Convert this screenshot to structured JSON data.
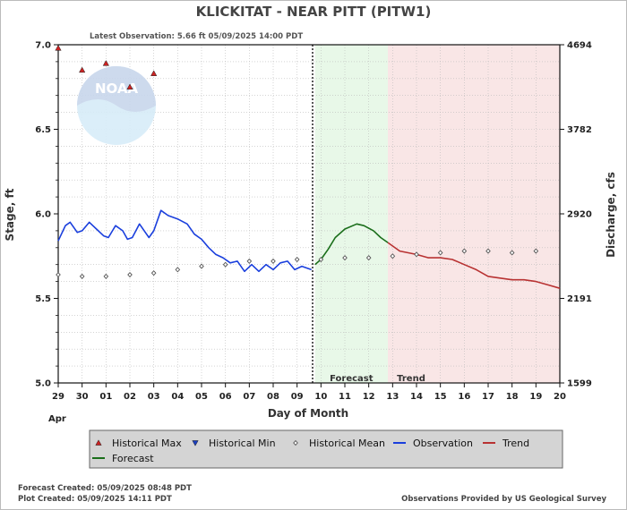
{
  "chart_data": {
    "type": "line",
    "title": "KLICKITAT - NEAR PITT  (PITW1)",
    "subtitle": "Latest Observation: 5.66 ft 05/09/2025 14:00 PDT",
    "ylabel": "Stage, ft",
    "y2label": "Discharge, cfs",
    "xlabel": "Day of Month",
    "month_label": "Apr",
    "ylim": [
      5.0,
      7.0
    ],
    "yticks": [
      5.0,
      5.5,
      6.0,
      6.5,
      7.0
    ],
    "y2ticks": [
      {
        "stage": 5.0,
        "label": "1599"
      },
      {
        "stage": 5.5,
        "label": "2191"
      },
      {
        "stage": 6.0,
        "label": "2920"
      },
      {
        "stage": 6.5,
        "label": "3782"
      },
      {
        "stage": 7.0,
        "label": "4694"
      }
    ],
    "xlim": [
      0,
      21
    ],
    "xticks": [
      "29",
      "30",
      "01",
      "02",
      "03",
      "04",
      "05",
      "06",
      "07",
      "08",
      "09",
      "10",
      "11",
      "12",
      "13",
      "14",
      "15",
      "16",
      "17",
      "18",
      "19",
      "20"
    ],
    "regions": [
      {
        "name": "Forecast",
        "from": 10.75,
        "to": 13.8,
        "color": "#e8f8e8"
      },
      {
        "name": "Trend",
        "from": 13.8,
        "to": 21.0,
        "color": "#f9e6e6"
      }
    ],
    "now_x": 10.65,
    "series": [
      {
        "name": "Historical Max",
        "marker": "triangle-up",
        "color": "#cc2222",
        "points": [
          [
            0,
            6.98
          ],
          [
            1,
            6.85
          ],
          [
            2,
            6.89
          ],
          [
            3,
            6.75
          ],
          [
            4,
            6.83
          ]
        ]
      },
      {
        "name": "Historical Min",
        "marker": "triangle-down",
        "color": "#1a3fbf",
        "points": []
      },
      {
        "name": "Historical Mean",
        "marker": "diamond",
        "color": "#555555",
        "points": [
          [
            0,
            5.64
          ],
          [
            1,
            5.63
          ],
          [
            2,
            5.63
          ],
          [
            3,
            5.64
          ],
          [
            4,
            5.65
          ],
          [
            5,
            5.67
          ],
          [
            6,
            5.69
          ],
          [
            7,
            5.7
          ],
          [
            8,
            5.72
          ],
          [
            9,
            5.72
          ],
          [
            10,
            5.73
          ],
          [
            11,
            5.73
          ],
          [
            12,
            5.74
          ],
          [
            13,
            5.74
          ],
          [
            14,
            5.75
          ],
          [
            15,
            5.76
          ],
          [
            16,
            5.77
          ],
          [
            17,
            5.78
          ],
          [
            18,
            5.78
          ],
          [
            19,
            5.77
          ],
          [
            20,
            5.78
          ]
        ]
      },
      {
        "name": "Observation",
        "color": "#1a3fdd",
        "points": [
          [
            0,
            5.84
          ],
          [
            0.3,
            5.93
          ],
          [
            0.5,
            5.95
          ],
          [
            0.8,
            5.89
          ],
          [
            1.0,
            5.9
          ],
          [
            1.3,
            5.95
          ],
          [
            1.6,
            5.91
          ],
          [
            1.9,
            5.87
          ],
          [
            2.1,
            5.86
          ],
          [
            2.4,
            5.93
          ],
          [
            2.7,
            5.9
          ],
          [
            2.9,
            5.85
          ],
          [
            3.1,
            5.86
          ],
          [
            3.4,
            5.94
          ],
          [
            3.6,
            5.9
          ],
          [
            3.8,
            5.86
          ],
          [
            4.0,
            5.9
          ],
          [
            4.3,
            6.02
          ],
          [
            4.6,
            5.99
          ],
          [
            5.0,
            5.97
          ],
          [
            5.4,
            5.94
          ],
          [
            5.7,
            5.88
          ],
          [
            6.0,
            5.85
          ],
          [
            6.3,
            5.8
          ],
          [
            6.6,
            5.76
          ],
          [
            6.9,
            5.74
          ],
          [
            7.2,
            5.71
          ],
          [
            7.5,
            5.72
          ],
          [
            7.8,
            5.66
          ],
          [
            8.1,
            5.7
          ],
          [
            8.4,
            5.66
          ],
          [
            8.7,
            5.7
          ],
          [
            9.0,
            5.67
          ],
          [
            9.3,
            5.71
          ],
          [
            9.6,
            5.72
          ],
          [
            9.9,
            5.67
          ],
          [
            10.2,
            5.69
          ],
          [
            10.4,
            5.68
          ],
          [
            10.6,
            5.67
          ]
        ]
      },
      {
        "name": "Forecast",
        "color": "#1a6e1a",
        "points": [
          [
            10.75,
            5.7
          ],
          [
            11.0,
            5.73
          ],
          [
            11.3,
            5.79
          ],
          [
            11.6,
            5.86
          ],
          [
            12.0,
            5.91
          ],
          [
            12.5,
            5.94
          ],
          [
            12.8,
            5.93
          ],
          [
            13.2,
            5.9
          ],
          [
            13.5,
            5.86
          ],
          [
            13.8,
            5.83
          ]
        ]
      },
      {
        "name": "Trend",
        "color": "#b83232",
        "points": [
          [
            13.8,
            5.83
          ],
          [
            14.3,
            5.78
          ],
          [
            15.0,
            5.76
          ],
          [
            15.5,
            5.74
          ],
          [
            16.0,
            5.74
          ],
          [
            16.5,
            5.73
          ],
          [
            17.0,
            5.7
          ],
          [
            17.5,
            5.67
          ],
          [
            18.0,
            5.63
          ],
          [
            18.5,
            5.62
          ],
          [
            19.0,
            5.61
          ],
          [
            19.5,
            5.61
          ],
          [
            20.0,
            5.6
          ],
          [
            20.5,
            5.58
          ],
          [
            21.0,
            5.56
          ]
        ]
      }
    ],
    "legend": {
      "position": "bottom",
      "items": [
        {
          "name": "Historical Max",
          "symbol": "triangle-up",
          "color": "#cc2222"
        },
        {
          "name": "Historical Min",
          "symbol": "triangle-down",
          "color": "#1a3fbf"
        },
        {
          "name": "Historical Mean",
          "symbol": "diamond",
          "color": "#555555"
        },
        {
          "name": "Observation",
          "symbol": "line",
          "color": "#1a3fdd"
        },
        {
          "name": "Trend",
          "symbol": "line",
          "color": "#b83232"
        },
        {
          "name": "Forecast",
          "symbol": "line",
          "color": "#1a6e1a"
        }
      ]
    },
    "grid": true
  },
  "footer": {
    "forecast_created": "Forecast Created: 05/09/2025 08:48 PDT",
    "plot_created": "Plot Created: 05/09/2025 14:11 PDT",
    "provider": "Observations Provided by US Geological Survey"
  },
  "watermark": {
    "text": "NOAA",
    "colors": {
      "top": "#c8d6ec",
      "bottom": "#d7ecf8"
    }
  }
}
